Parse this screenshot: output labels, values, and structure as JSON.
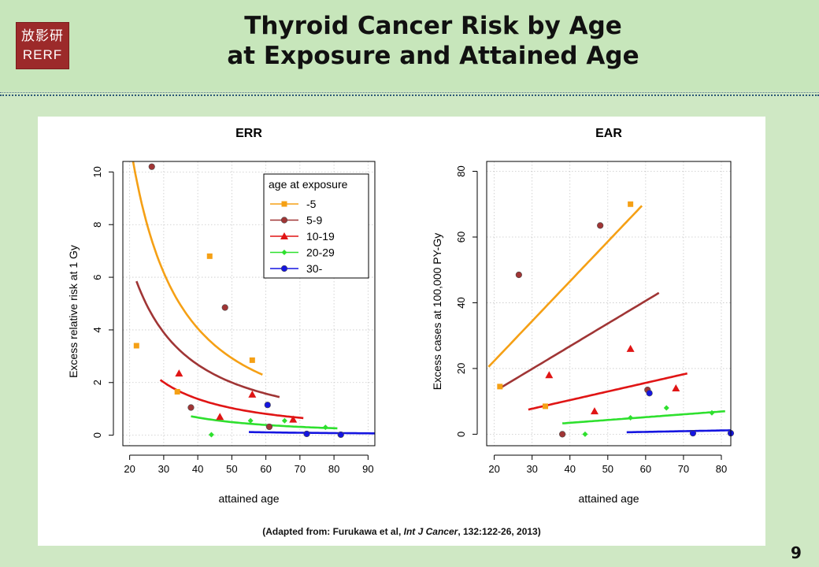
{
  "slide": {
    "title_line1": "Thyroid Cancer Risk by Age",
    "title_line2": "at Exposure and Attained Age",
    "logo_kanji": "放影研",
    "logo_abbr": "RERF",
    "page_number": "9",
    "citation_prefix": "(Adapted from: Furukawa et al, ",
    "citation_journal": "Int J Cancer",
    "citation_suffix": ", 132:122-26, 2013)"
  },
  "colors": {
    "-5": "#f5a015",
    "5-9": "#a03535",
    "10-19": "#e01515",
    "20-29": "#2ee02e",
    "30-": "#1515e0"
  },
  "chart_data": [
    {
      "type": "scatter",
      "title": "ERR",
      "xlabel": "attained age",
      "ylabel": "Excess relative risk at 1 Gy",
      "xlim": [
        18,
        92
      ],
      "ylim": [
        -0.4,
        10.4
      ],
      "xticks": [
        20,
        30,
        40,
        50,
        60,
        70,
        80,
        90
      ],
      "yticks": [
        0,
        2,
        4,
        6,
        8,
        10
      ],
      "grid": true,
      "legend": {
        "title": "age at exposure",
        "placement": "top-right",
        "entries": [
          "-5",
          "5-9",
          "10-19",
          "20-29",
          "30-"
        ]
      },
      "series": [
        {
          "name": "-5",
          "marker": "square",
          "points": [
            [
              22,
              3.4
            ],
            [
              34,
              1.65
            ],
            [
              43.5,
              6.8
            ],
            [
              56,
              2.85
            ]
          ],
          "fit": {
            "model": "power",
            "x0": 21,
            "x1": 59,
            "y_at_x0": 10.4,
            "y_at_x1": 2.3
          }
        },
        {
          "name": "5-9",
          "marker": "circle",
          "points": [
            [
              26.5,
              10.2
            ],
            [
              38,
              1.05
            ],
            [
              48,
              4.85
            ],
            [
              61,
              0.32
            ]
          ],
          "fit": {
            "model": "power",
            "x0": 22,
            "x1": 64,
            "y_at_x0": 5.85,
            "y_at_x1": 1.45
          }
        },
        {
          "name": "10-19",
          "marker": "triangle",
          "points": [
            [
              34.5,
              2.35
            ],
            [
              46.5,
              0.7
            ],
            [
              56,
              1.55
            ],
            [
              68,
              0.6
            ]
          ],
          "fit": {
            "model": "power",
            "x0": 29,
            "x1": 71,
            "y_at_x0": 2.1,
            "y_at_x1": 0.65
          }
        },
        {
          "name": "20-29",
          "marker": "diamond",
          "points": [
            [
              44,
              0.02
            ],
            [
              55.5,
              0.55
            ],
            [
              65.5,
              0.55
            ],
            [
              77.5,
              0.3
            ]
          ],
          "fit": {
            "model": "power",
            "x0": 38,
            "x1": 81,
            "y_at_x0": 0.72,
            "y_at_x1": 0.26
          }
        },
        {
          "name": "30-",
          "marker": "circle",
          "points": [
            [
              60.5,
              1.15
            ],
            [
              72,
              0.05
            ],
            [
              82,
              0.02
            ]
          ],
          "fit": {
            "model": "power",
            "x0": 55,
            "x1": 92,
            "y_at_x0": 0.12,
            "y_at_x1": 0.07
          }
        }
      ]
    },
    {
      "type": "scatter",
      "title": "EAR",
      "xlabel": "attained age",
      "ylabel": "Excess cases at 100,000 PY-Gy",
      "xlim": [
        18,
        82.5
      ],
      "ylim": [
        -3.5,
        83
      ],
      "xticks": [
        20,
        30,
        40,
        50,
        60,
        70,
        80
      ],
      "yticks": [
        0,
        20,
        40,
        60,
        80
      ],
      "grid": true,
      "series": [
        {
          "name": "-5",
          "marker": "square",
          "points": [
            [
              21.5,
              14.5
            ],
            [
              33.5,
              8.5
            ],
            [
              56,
              70
            ]
          ],
          "fit": {
            "model": "linear",
            "x0": 18.5,
            "x1": 59,
            "y_at_x0": 20.5,
            "y_at_x1": 69.5
          }
        },
        {
          "name": "5-9",
          "marker": "circle",
          "points": [
            [
              26.5,
              48.5
            ],
            [
              38,
              0
            ],
            [
              48,
              63.5
            ],
            [
              60.5,
              13.5
            ]
          ],
          "fit": {
            "model": "linear",
            "x0": 21.5,
            "x1": 63.5,
            "y_at_x0": 14,
            "y_at_x1": 43
          }
        },
        {
          "name": "10-19",
          "marker": "triangle",
          "points": [
            [
              34.5,
              18
            ],
            [
              46.5,
              7
            ],
            [
              56,
              26
            ],
            [
              68,
              14
            ]
          ],
          "fit": {
            "model": "linear",
            "x0": 29,
            "x1": 71,
            "y_at_x0": 7.5,
            "y_at_x1": 18.5
          }
        },
        {
          "name": "20-29",
          "marker": "diamond",
          "points": [
            [
              44,
              0
            ],
            [
              56,
              5
            ],
            [
              65.5,
              8
            ],
            [
              77.5,
              6.5
            ]
          ],
          "fit": {
            "model": "linear",
            "x0": 38,
            "x1": 81,
            "y_at_x0": 3.3,
            "y_at_x1": 7
          }
        },
        {
          "name": "30-",
          "marker": "circle",
          "points": [
            [
              61,
              12.5
            ],
            [
              72.5,
              0.3
            ],
            [
              82.5,
              0.3
            ]
          ],
          "fit": {
            "model": "linear",
            "x0": 55,
            "x1": 82.5,
            "y_at_x0": 0.6,
            "y_at_x1": 1.2
          }
        }
      ]
    }
  ]
}
